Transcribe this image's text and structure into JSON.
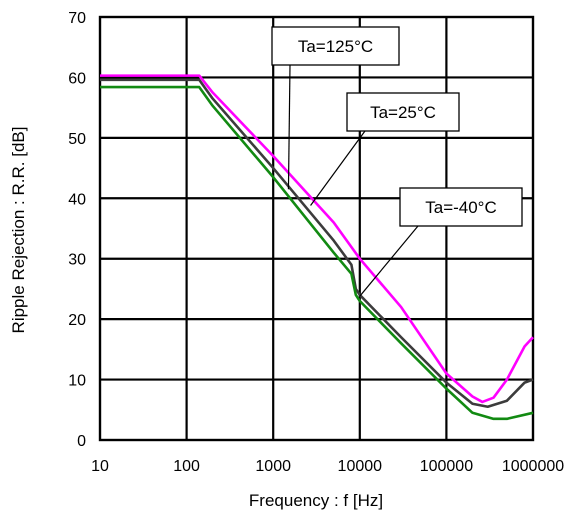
{
  "chart_data": {
    "type": "line",
    "xlabel": "Frequency : f [Hz]",
    "ylabel": "Ripple Rejection : R.R. [dB]",
    "x_scale": "log",
    "xlim": [
      10,
      1000000
    ],
    "ylim": [
      0,
      70
    ],
    "x_ticks": [
      10,
      100,
      1000,
      10000,
      100000,
      1000000
    ],
    "x_tick_labels": [
      "10",
      "100",
      "1000",
      "10000",
      "100000",
      "1000000"
    ],
    "y_ticks": [
      0,
      10,
      20,
      30,
      40,
      50,
      60,
      70
    ],
    "y_tick_labels": [
      "0",
      "10",
      "20",
      "30",
      "40",
      "50",
      "60",
      "70"
    ],
    "grid": true,
    "series": [
      {
        "name": "Ta=125°C",
        "color": "#ff00ff",
        "points": [
          [
            10,
            60.3
          ],
          [
            100,
            60.3
          ],
          [
            140,
            60.3
          ],
          [
            200,
            57.5
          ],
          [
            1000,
            47
          ],
          [
            5000,
            36
          ],
          [
            10000,
            30
          ],
          [
            30000,
            22
          ],
          [
            100000,
            11
          ],
          [
            200000,
            7.2
          ],
          [
            260000,
            6.3
          ],
          [
            350000,
            7
          ],
          [
            500000,
            10
          ],
          [
            800000,
            15.5
          ],
          [
            1000000,
            17
          ]
        ]
      },
      {
        "name": "Ta=25°C",
        "color": "#3c3c3c",
        "points": [
          [
            10,
            59.6
          ],
          [
            100,
            59.6
          ],
          [
            140,
            59.6
          ],
          [
            200,
            56.5
          ],
          [
            1000,
            45
          ],
          [
            5000,
            33
          ],
          [
            8000,
            29
          ],
          [
            9000,
            25
          ],
          [
            10000,
            24
          ],
          [
            30000,
            17
          ],
          [
            100000,
            9.5
          ],
          [
            200000,
            6
          ],
          [
            300000,
            5.5
          ],
          [
            500000,
            6.5
          ],
          [
            800000,
            9.5
          ],
          [
            1000000,
            10
          ]
        ]
      },
      {
        "name": "Ta=-40°C",
        "color": "#128a12",
        "points": [
          [
            10,
            58.4
          ],
          [
            100,
            58.4
          ],
          [
            140,
            58.4
          ],
          [
            200,
            55.3
          ],
          [
            1000,
            43.5
          ],
          [
            5000,
            31
          ],
          [
            8000,
            27.5
          ],
          [
            9000,
            24
          ],
          [
            10000,
            23
          ],
          [
            30000,
            16
          ],
          [
            100000,
            8.5
          ],
          [
            200000,
            4.5
          ],
          [
            350000,
            3.5
          ],
          [
            500000,
            3.5
          ],
          [
            1000000,
            4.5
          ]
        ]
      }
    ],
    "annotations": [
      {
        "text": "Ta=125°C",
        "series_index": 0,
        "point": [
          1500,
          41.5
        ]
      },
      {
        "text": "Ta=25°C",
        "series_index": 1,
        "point": [
          2700,
          38.8
        ]
      },
      {
        "text": "Ta=-40°C",
        "series_index": 2,
        "point": [
          10000,
          23.8
        ]
      }
    ]
  }
}
